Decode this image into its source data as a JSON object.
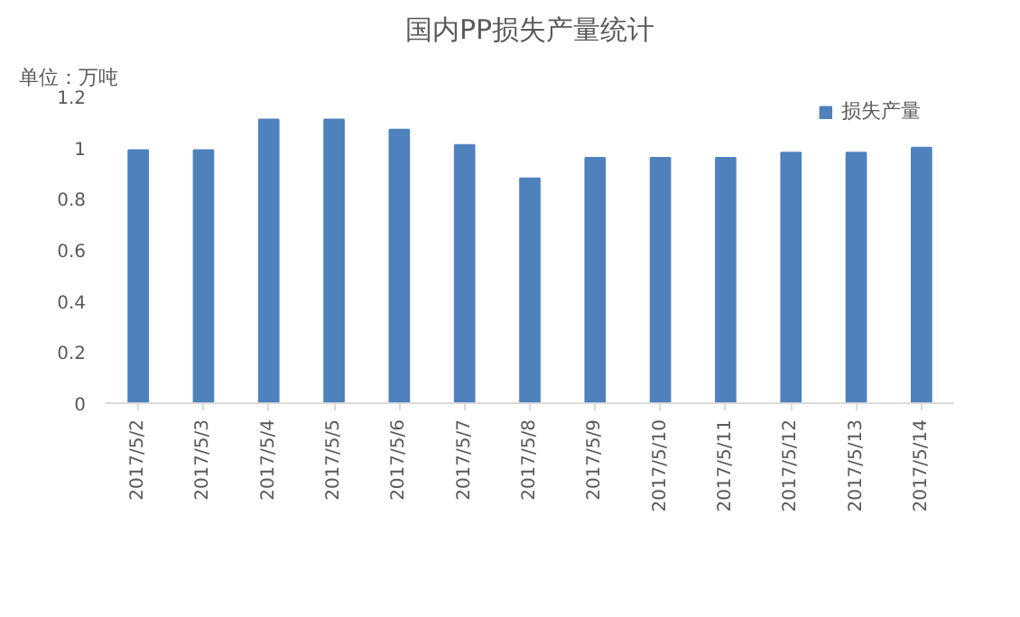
{
  "chart_data": {
    "type": "bar",
    "title": "国内PP损失产量统计",
    "ylabel": "单位：万吨",
    "categories": [
      "2017/5/2",
      "2017/5/3",
      "2017/5/4",
      "2017/5/5",
      "2017/5/6",
      "2017/5/7",
      "2017/5/8",
      "2017/5/9",
      "2017/5/10",
      "2017/5/11",
      "2017/5/12",
      "2017/5/13",
      "2017/5/14"
    ],
    "series": [
      {
        "name": "损失产量",
        "color": "#4f81bd",
        "values": [
          0.99,
          0.99,
          1.11,
          1.11,
          1.07,
          1.01,
          0.88,
          0.96,
          0.96,
          0.96,
          0.98,
          0.98,
          1.0
        ]
      }
    ],
    "ylim": [
      0,
      1.2
    ],
    "yticks": [
      0,
      0.2,
      0.4,
      0.6,
      0.8,
      1,
      1.2
    ],
    "legend": "top right",
    "grid": false
  }
}
